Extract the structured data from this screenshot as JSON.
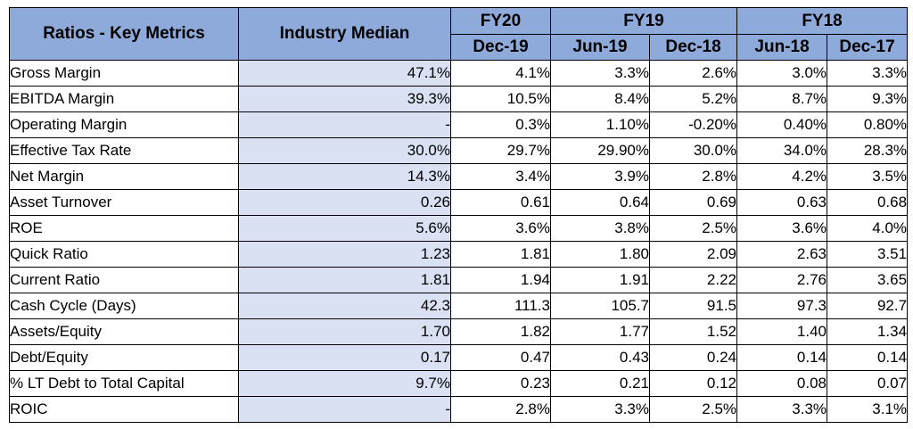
{
  "header": {
    "metric_col": "Ratios - Key Metrics",
    "median_col": "Industry Median",
    "fiscal_years": [
      "FY20",
      "FY19",
      "FY18"
    ],
    "periods": [
      "Dec-19",
      "Jun-19",
      "Dec-18",
      "Jun-18",
      "Dec-17"
    ]
  },
  "rows": [
    {
      "metric": "Gross Margin",
      "median": "47.1%",
      "values": [
        "4.1%",
        "3.3%",
        "2.6%",
        "3.0%",
        "3.3%"
      ]
    },
    {
      "metric": "EBITDA Margin",
      "median": "39.3%",
      "values": [
        "10.5%",
        "8.4%",
        "5.2%",
        "8.7%",
        "9.3%"
      ]
    },
    {
      "metric": "Operating Margin",
      "median": "-",
      "values": [
        "0.3%",
        "1.10%",
        "-0.20%",
        "0.40%",
        "0.80%"
      ]
    },
    {
      "metric": "Effective Tax Rate",
      "median": "30.0%",
      "values": [
        "29.7%",
        "29.90%",
        "30.0%",
        "34.0%",
        "28.3%"
      ]
    },
    {
      "metric": "Net Margin",
      "median": "14.3%",
      "values": [
        "3.4%",
        "3.9%",
        "2.8%",
        "4.2%",
        "3.5%"
      ]
    },
    {
      "metric": "Asset Turnover",
      "median": "0.26",
      "values": [
        "0.61",
        "0.64",
        "0.69",
        "0.63",
        "0.68"
      ]
    },
    {
      "metric": "ROE",
      "median": "5.6%",
      "values": [
        "3.6%",
        "3.8%",
        "2.5%",
        "3.6%",
        "4.0%"
      ]
    },
    {
      "metric": "Quick Ratio",
      "median": "1.23",
      "values": [
        "1.81",
        "1.80",
        "2.09",
        "2.63",
        "3.51"
      ]
    },
    {
      "metric": "Current Ratio",
      "median": "1.81",
      "values": [
        "1.94",
        "1.91",
        "2.22",
        "2.76",
        "3.65"
      ]
    },
    {
      "metric": "Cash Cycle (Days)",
      "median": "42.3",
      "values": [
        "111.3",
        "105.7",
        "91.5",
        "97.3",
        "92.7"
      ]
    },
    {
      "metric": "Assets/Equity",
      "median": "1.70",
      "values": [
        "1.82",
        "1.77",
        "1.52",
        "1.40",
        "1.34"
      ]
    },
    {
      "metric": "Debt/Equity",
      "median": "0.17",
      "values": [
        "0.47",
        "0.43",
        "0.24",
        "0.14",
        "0.14"
      ]
    },
    {
      "metric": "% LT Debt to Total Capital",
      "median": "9.7%",
      "values": [
        "0.23",
        "0.21",
        "0.12",
        "0.08",
        "0.07"
      ]
    },
    {
      "metric": "ROIC",
      "median": "-",
      "values": [
        "2.8%",
        "3.3%",
        "2.5%",
        "3.3%",
        "3.1%"
      ]
    }
  ]
}
